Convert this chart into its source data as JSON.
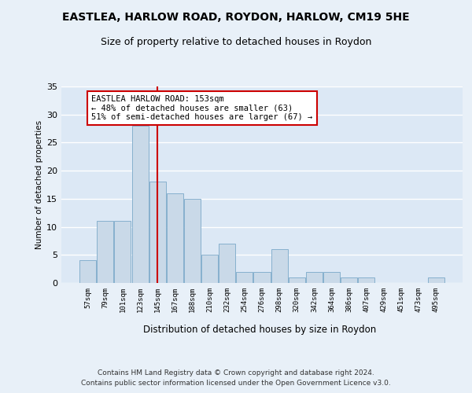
{
  "title1": "EASTLEA, HARLOW ROAD, ROYDON, HARLOW, CM19 5HE",
  "title2": "Size of property relative to detached houses in Roydon",
  "xlabel": "Distribution of detached houses by size in Roydon",
  "ylabel": "Number of detached properties",
  "categories": [
    "57sqm",
    "79sqm",
    "101sqm",
    "123sqm",
    "145sqm",
    "167sqm",
    "188sqm",
    "210sqm",
    "232sqm",
    "254sqm",
    "276sqm",
    "298sqm",
    "320sqm",
    "342sqm",
    "364sqm",
    "386sqm",
    "407sqm",
    "429sqm",
    "451sqm",
    "473sqm",
    "495sqm"
  ],
  "values": [
    4,
    11,
    11,
    28,
    18,
    16,
    15,
    5,
    7,
    2,
    2,
    6,
    1,
    2,
    2,
    1,
    1,
    0,
    0,
    0,
    1
  ],
  "bar_color": "#c9d9e8",
  "bar_edge_color": "#7aa8c8",
  "vline_x": 4,
  "vline_color": "#cc0000",
  "annotation_text": "EASTLEA HARLOW ROAD: 153sqm\n← 48% of detached houses are smaller (63)\n51% of semi-detached houses are larger (67) →",
  "annotation_box_color": "#ffffff",
  "annotation_box_edge": "#cc0000",
  "ylim": [
    0,
    35
  ],
  "yticks": [
    0,
    5,
    10,
    15,
    20,
    25,
    30,
    35
  ],
  "footer": "Contains HM Land Registry data © Crown copyright and database right 2024.\nContains public sector information licensed under the Open Government Licence v3.0.",
  "bg_color": "#dce8f5",
  "fig_bg_color": "#e8f0f8",
  "title1_fontsize": 10,
  "title2_fontsize": 9,
  "grid_color": "#ffffff",
  "annotation_fontsize": 7.5
}
